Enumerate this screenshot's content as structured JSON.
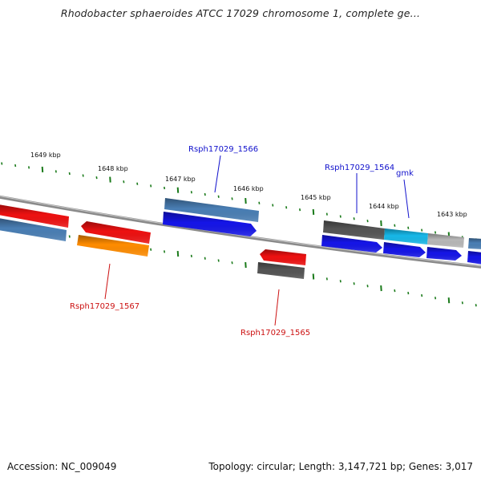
{
  "title": "Rhodobacter sphaeroides ATCC 17029 chromosome 1, complete ge...",
  "footer": {
    "accession": "Accession: NC_009049",
    "summary": "Topology: circular; Length: 3,147,721 bp; Genes: 3,017"
  },
  "ruler": {
    "labels": [
      "1649 kbp",
      "1648 kbp",
      "1647 kbp",
      "1646 kbp",
      "1645 kbp",
      "1644 kbp",
      "1643 kbp"
    ],
    "tick_color": "#1a7a1a"
  },
  "gene_labels": {
    "rsph1566": "Rsph17029_1566",
    "rsph1564": "Rsph17029_1564",
    "gmk": "gmk",
    "rsph1567": "Rsph17029_1567",
    "rsph1565": "Rsph17029_1565"
  },
  "colors": {
    "backbone": "#808080",
    "red_gene": "#ee1111",
    "blue_gene": "#1515e8",
    "steel_gene": "#4a7fb5",
    "orange_gene": "#ff8c00",
    "dark_gray_gene": "#555555",
    "cyan_gene": "#17b8e8",
    "light_gray_gene": "#b8b8b8",
    "blue_label": "#1111cc",
    "red_label": "#cc1111"
  }
}
